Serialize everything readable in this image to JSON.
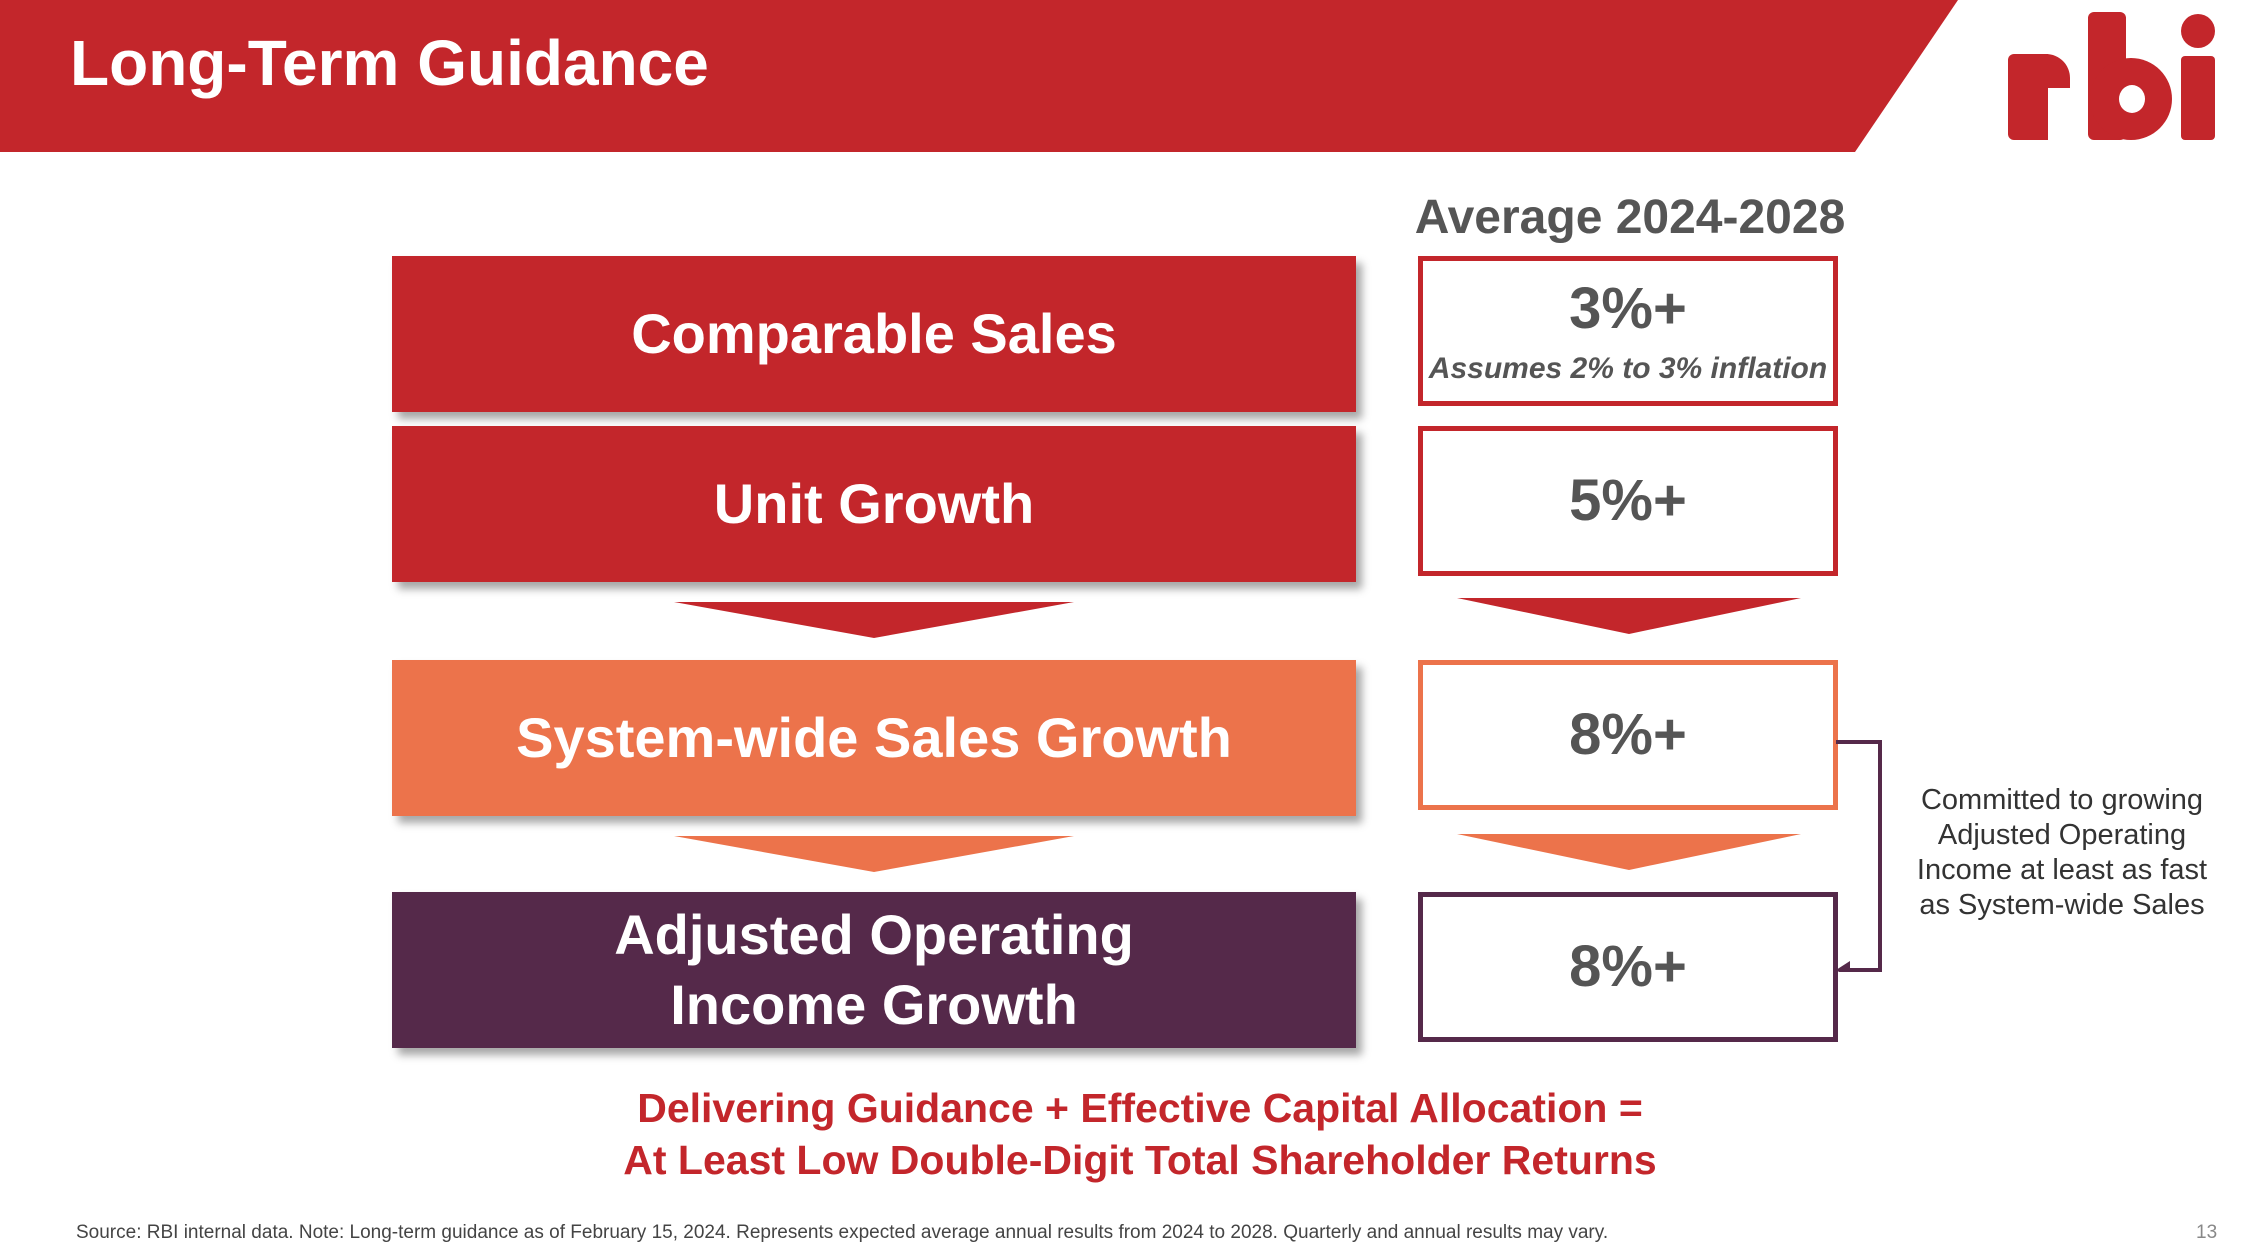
{
  "header": {
    "title": "Long-Term Guidance",
    "logo_text": "rbi"
  },
  "colors": {
    "brand_red": "#c3262b",
    "orange": "#ec734b",
    "purple": "#55294a",
    "gray_text": "#555555"
  },
  "column_header": "Average 2024-2028",
  "metrics": [
    {
      "label_lines": [
        "Comparable Sales"
      ],
      "value": "3%+",
      "note": "Assumes 2% to 3% inflation"
    },
    {
      "label_lines": [
        "Unit Growth"
      ],
      "value": "5%+"
    },
    {
      "label_lines": [
        "System-wide Sales Growth"
      ],
      "value": "8%+"
    },
    {
      "label_lines": [
        "Adjusted Operating",
        "Income Growth"
      ],
      "value": "8%+"
    }
  ],
  "side_note_lines": [
    "Committed to growing",
    "Adjusted Operating",
    "Income at least as fast",
    "as System-wide Sales"
  ],
  "tagline_lines": [
    "Delivering Guidance + Effective Capital Allocation =",
    "At Least Low Double-Digit Total Shareholder Returns"
  ],
  "footer": {
    "source": "Source: RBI internal data. Note: Long-term guidance as of February 15, 2024. Represents expected average annual results from 2024 to 2028. Quarterly and annual results may vary.",
    "page_number": "13"
  }
}
